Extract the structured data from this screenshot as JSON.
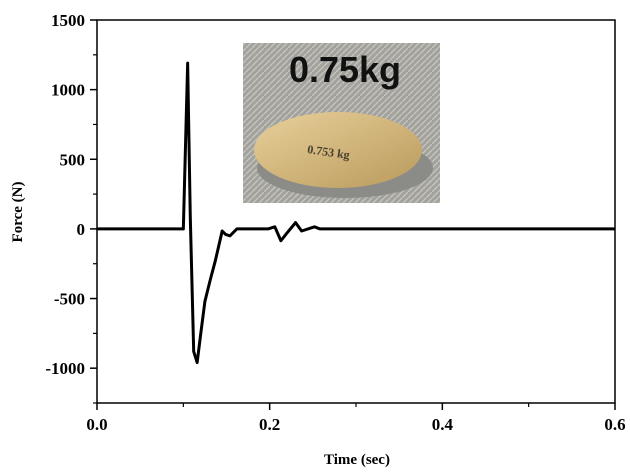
{
  "chart_data": {
    "type": "line",
    "xlabel": "Time (sec)",
    "ylabel": "Force (N)",
    "x": [
      0,
      0.1,
      0.105,
      0.108,
      0.112,
      0.116,
      0.12,
      0.125,
      0.131,
      0.137,
      0.145,
      0.149,
      0.154,
      0.162,
      0.198,
      0.206,
      0.213,
      0.22,
      0.23,
      0.237,
      0.252,
      0.258,
      0.6
    ],
    "series": [
      {
        "color": "#000000",
        "values": [
          0,
          0,
          1190,
          100,
          -880,
          -960,
          -760,
          -520,
          -370,
          -230,
          -15,
          -40,
          -50,
          0,
          0,
          15,
          -85,
          -30,
          45,
          -15,
          15,
          0,
          0
        ]
      }
    ],
    "xlim": [
      0,
      0.6
    ],
    "xticks": [
      {
        "value": 0,
        "label": "0.0"
      },
      0.2,
      0.4,
      0.6
    ],
    "xminor_ticks": [
      0.1,
      0.3,
      0.5
    ],
    "ylim": [
      -1250,
      1500
    ],
    "yticks": [
      -1000,
      -500,
      0,
      500,
      1000,
      1500
    ],
    "yminor_ticks": [
      -1250,
      -750,
      -250,
      250,
      750,
      1250
    ],
    "annotations": [
      "0.75kg",
      "0.753 kg"
    ]
  }
}
